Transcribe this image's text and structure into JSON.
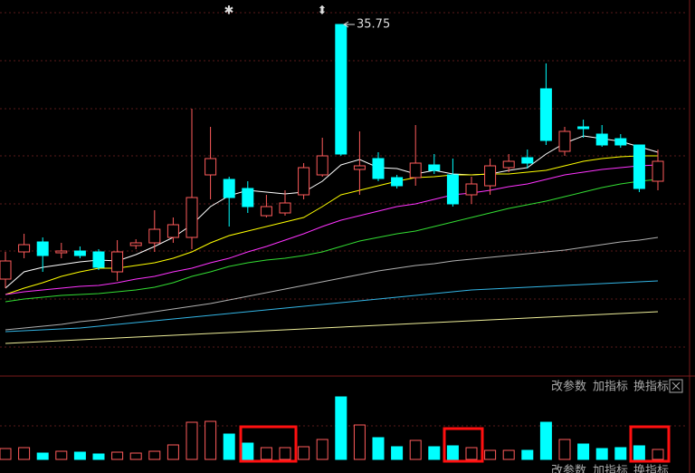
{
  "chart_data": [
    {
      "type": "candlestick",
      "up_color": "#ff5b5b",
      "down_color": "#00ffff",
      "ylim": [
        16.35,
        37.1
      ],
      "open": [
        21.7,
        23.2,
        23.75,
        23.15,
        23.25,
        23.2,
        22.1,
        23.55,
        23.7,
        24.0,
        24.0,
        27.45,
        27.2,
        26.7,
        25.2,
        25.35,
        26.35,
        27.45,
        35.75,
        27.75,
        28.35,
        27.3,
        27.3,
        28.0,
        27.45,
        26.35,
        26.85,
        27.85,
        28.4,
        32.2,
        28.75,
        30.1,
        29.7,
        29.45,
        29.1,
        27.1
      ],
      "high": [
        23.2,
        24.2,
        24.0,
        23.7,
        23.5,
        23.35,
        23.85,
        23.9,
        25.5,
        25.1,
        31.1,
        30.1,
        27.35,
        27.1,
        26.35,
        26.6,
        28.1,
        29.5,
        35.75,
        29.85,
        28.7,
        27.45,
        30.2,
        28.6,
        28.35,
        27.35,
        28.35,
        28.6,
        28.85,
        33.6,
        30.1,
        30.5,
        30.2,
        29.7,
        29.1,
        28.85
      ],
      "low": [
        21.2,
        22.85,
        22.1,
        22.85,
        22.85,
        22.2,
        21.6,
        23.35,
        23.2,
        23.7,
        23.35,
        26.1,
        24.6,
        25.35,
        25.1,
        25.2,
        26.1,
        27.35,
        28.5,
        26.35,
        27.1,
        26.7,
        26.85,
        27.5,
        25.7,
        25.85,
        26.35,
        27.6,
        27.8,
        29.1,
        28.5,
        29.5,
        29.0,
        28.95,
        26.5,
        26.6
      ],
      "close": [
        22.7,
        23.6,
        23.0,
        23.25,
        23.0,
        22.35,
        23.2,
        23.7,
        24.45,
        24.7,
        26.2,
        28.35,
        26.2,
        25.7,
        25.7,
        25.9,
        27.85,
        28.5,
        28.6,
        27.95,
        27.25,
        26.85,
        28.1,
        27.7,
        25.85,
        26.95,
        27.95,
        28.2,
        28.1,
        29.35,
        29.85,
        30.0,
        29.1,
        29.1,
        26.7,
        28.2
      ],
      "series": [
        {
          "color": "#ffffff",
          "values": [
            21.2,
            22.1,
            22.35,
            22.5,
            22.65,
            22.75,
            22.7,
            23.05,
            23.5,
            24.0,
            24.7,
            25.7,
            26.3,
            26.6,
            26.5,
            26.4,
            26.5,
            27.1,
            28.0,
            28.3,
            27.85,
            27.8,
            27.5,
            27.7,
            27.5,
            27.45,
            27.5,
            27.7,
            27.85,
            28.6,
            29.2,
            29.6,
            29.45,
            29.3,
            29.0,
            28.7
          ]
        },
        {
          "color": "#ffff00",
          "values": [
            20.85,
            21.2,
            21.5,
            21.85,
            22.1,
            22.3,
            22.3,
            22.45,
            22.6,
            22.85,
            23.2,
            23.7,
            24.1,
            24.35,
            24.6,
            24.85,
            25.1,
            25.7,
            26.35,
            26.6,
            26.85,
            27.1,
            27.3,
            27.35,
            27.45,
            27.45,
            27.5,
            27.5,
            27.6,
            27.7,
            27.95,
            28.2,
            28.35,
            28.45,
            28.5,
            28.5
          ]
        },
        {
          "color": "#ff33ff",
          "values": [
            20.85,
            21.0,
            21.1,
            21.2,
            21.3,
            21.35,
            21.5,
            21.7,
            21.85,
            22.1,
            22.3,
            22.6,
            22.85,
            23.2,
            23.5,
            23.85,
            24.2,
            24.6,
            24.95,
            25.2,
            25.45,
            25.7,
            25.85,
            26.1,
            26.35,
            26.45,
            26.6,
            26.8,
            26.95,
            27.2,
            27.45,
            27.6,
            27.75,
            27.85,
            27.95,
            28.0
          ]
        },
        {
          "color": "#33dd33",
          "values": [
            20.45,
            20.6,
            20.7,
            20.8,
            20.85,
            20.9,
            21.0,
            21.1,
            21.25,
            21.5,
            21.85,
            22.1,
            22.4,
            22.6,
            22.75,
            22.85,
            23.0,
            23.2,
            23.5,
            23.8,
            24.0,
            24.2,
            24.35,
            24.6,
            24.85,
            25.1,
            25.35,
            25.6,
            25.8,
            26.0,
            26.25,
            26.5,
            26.75,
            26.95,
            27.1,
            27.2
          ]
        },
        {
          "color": "#b0b0b0",
          "values": [
            18.9,
            19.0,
            19.1,
            19.2,
            19.35,
            19.45,
            19.6,
            19.75,
            19.9,
            20.05,
            20.2,
            20.35,
            20.55,
            20.75,
            20.95,
            21.15,
            21.35,
            21.55,
            21.75,
            21.95,
            22.15,
            22.3,
            22.45,
            22.55,
            22.7,
            22.8,
            22.9,
            23.0,
            23.1,
            23.2,
            23.3,
            23.45,
            23.6,
            23.75,
            23.85,
            24.0
          ]
        },
        {
          "color": "#33b5e5",
          "values": [
            18.8,
            18.85,
            18.9,
            18.95,
            19.0,
            19.1,
            19.2,
            19.3,
            19.4,
            19.5,
            19.6,
            19.7,
            19.8,
            19.9,
            20.0,
            20.1,
            20.2,
            20.3,
            20.4,
            20.5,
            20.6,
            20.7,
            20.8,
            20.9,
            21.0,
            21.1,
            21.15,
            21.2,
            21.25,
            21.3,
            21.35,
            21.4,
            21.45,
            21.5,
            21.55,
            21.6
          ]
        },
        {
          "color": "#eeee99",
          "values": [
            18.15,
            18.2,
            18.25,
            18.3,
            18.35,
            18.4,
            18.45,
            18.5,
            18.55,
            18.6,
            18.65,
            18.7,
            18.75,
            18.8,
            18.85,
            18.9,
            18.95,
            19.0,
            19.05,
            19.1,
            19.15,
            19.2,
            19.25,
            19.3,
            19.35,
            19.4,
            19.45,
            19.5,
            19.55,
            19.6,
            19.65,
            19.7,
            19.75,
            19.8,
            19.85,
            19.9
          ]
        }
      ],
      "annotations": [
        "35.75"
      ]
    },
    {
      "type": "volume",
      "ylim": [
        0,
        80
      ],
      "values": [
        12,
        13,
        7,
        9,
        8,
        6,
        8,
        7,
        9,
        16,
        41,
        42,
        28,
        18,
        13,
        13,
        14,
        22,
        69,
        38,
        24,
        14,
        21,
        14,
        15,
        13,
        10,
        10,
        10,
        41,
        22,
        17,
        12,
        13,
        15,
        11
      ],
      "toolbar": [
        "改参数",
        "加指标",
        "换指标"
      ]
    }
  ]
}
